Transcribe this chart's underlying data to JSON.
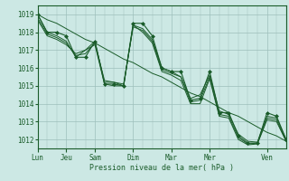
{
  "xlabel": "Pression niveau de la mer( hPa )",
  "bg_color": "#cce8e4",
  "grid_color": "#9dbfbb",
  "line_color": "#1a5c2a",
  "ylim": [
    1011.5,
    1019.5
  ],
  "yticks": [
    1012,
    1013,
    1014,
    1015,
    1016,
    1017,
    1018,
    1019
  ],
  "day_positions": [
    0,
    3,
    6,
    10,
    14,
    18,
    24
  ],
  "day_labels": [
    "Lun",
    "Jeu",
    "Sam",
    "Dim",
    "Mar",
    "Mer",
    "Ven"
  ],
  "xlim": [
    0,
    26
  ],
  "n_points": 27,
  "series1": [
    1019.0,
    1018.0,
    1018.0,
    1017.8,
    1016.6,
    1016.6,
    1017.5,
    1015.1,
    1015.1,
    1015.0,
    1018.5,
    1018.5,
    1017.8,
    1016.0,
    1015.8,
    1015.8,
    1014.2,
    1014.3,
    1015.8,
    1013.5,
    1013.5,
    1012.2,
    1011.8,
    1011.8,
    1013.5,
    1013.3,
    1012.0
  ],
  "series2": [
    1019.0,
    1018.0,
    1017.8,
    1017.5,
    1016.6,
    1017.0,
    1017.5,
    1015.2,
    1015.2,
    1015.1,
    1018.3,
    1018.1,
    1017.5,
    1015.9,
    1015.7,
    1015.5,
    1014.1,
    1014.2,
    1015.5,
    1013.4,
    1013.3,
    1012.1,
    1011.75,
    1011.8,
    1013.2,
    1013.1,
    1011.9
  ],
  "series3": [
    1018.8,
    1017.9,
    1017.7,
    1017.4,
    1016.7,
    1016.8,
    1017.4,
    1015.3,
    1015.2,
    1015.0,
    1018.4,
    1018.2,
    1017.6,
    1016.0,
    1015.8,
    1015.5,
    1014.3,
    1014.5,
    1015.6,
    1013.6,
    1013.4,
    1012.3,
    1011.9,
    1011.85,
    1013.3,
    1013.2,
    1012.0
  ],
  "series4": [
    1018.7,
    1017.8,
    1017.6,
    1017.3,
    1016.8,
    1017.0,
    1017.3,
    1015.1,
    1015.0,
    1015.0,
    1018.4,
    1018.0,
    1017.4,
    1015.8,
    1015.6,
    1015.3,
    1014.0,
    1014.0,
    1015.4,
    1013.3,
    1013.2,
    1012.0,
    1011.7,
    1011.75,
    1013.1,
    1013.0,
    1011.9
  ],
  "trend": [
    1019.0,
    1018.7,
    1018.5,
    1018.2,
    1017.9,
    1017.6,
    1017.4,
    1017.1,
    1016.8,
    1016.5,
    1016.3,
    1016.0,
    1015.7,
    1015.5,
    1015.2,
    1014.9,
    1014.6,
    1014.4,
    1014.1,
    1013.8,
    1013.5,
    1013.3,
    1013.0,
    1012.7,
    1012.4,
    1012.2,
    1011.9
  ]
}
